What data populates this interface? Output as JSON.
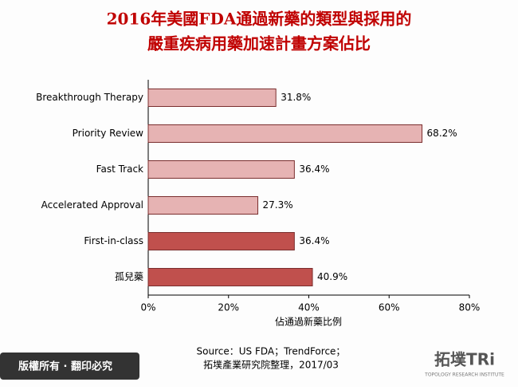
{
  "chart_data": {
    "type": "barh",
    "title": [
      "2016年美國FDA通過新藥的類型與採用的",
      "嚴重疾病用藥加速計畫方案佔比"
    ],
    "categories": [
      "Breakthrough Therapy",
      "Priority Review",
      "Fast Track",
      "Accelerated Approval",
      "First-in-class",
      "孤兒藥"
    ],
    "values": [
      31.8,
      68.2,
      36.4,
      27.3,
      36.4,
      40.9
    ],
    "value_labels": [
      "31.8%",
      "68.2%",
      "36.4%",
      "27.3%",
      "36.4%",
      "40.9%"
    ],
    "colors": [
      "#e6b3b3",
      "#e6b3b3",
      "#e6b3b3",
      "#e6b3b3",
      "#c0504d",
      "#c0504d"
    ],
    "xlim": [
      0,
      80
    ],
    "xticks": [
      {
        "value": 0,
        "label": "0%"
      },
      {
        "value": 20,
        "label": "20%"
      },
      {
        "value": 40,
        "label": "40%"
      },
      {
        "value": 60,
        "label": "60%"
      },
      {
        "value": 80,
        "label": "80%"
      }
    ],
    "xlabel": "佔通過新藥比例",
    "source": [
      "Source：US FDA；TrendForce；",
      "拓墣產業研究院整理，2017/03"
    ]
  },
  "footer": {
    "copyright": "版權所有 · 翻印必究",
    "logo": "拓墣TRi",
    "logo_sub": "TOPOLOGY RESEARCH INSTITUTE"
  }
}
